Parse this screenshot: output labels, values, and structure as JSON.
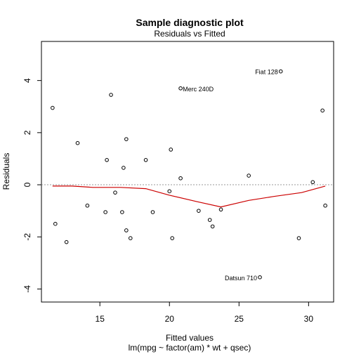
{
  "chart_data": {
    "type": "scatter",
    "title": "Sample diagnostic plot",
    "subtitle": "Residuals vs Fitted",
    "xlabel": "Fitted values",
    "xlabel2": "lm(mpg ~ factor(am) * wt + qsec)",
    "ylabel": "Residuals",
    "xlim": [
      10.8,
      31.8
    ],
    "ylim": [
      -4.5,
      5.5
    ],
    "xticks": [
      15,
      20,
      25,
      30
    ],
    "yticks": [
      -4,
      -2,
      0,
      2,
      4
    ],
    "reference_line": 0,
    "grid": false,
    "colors": {
      "points": "#000000",
      "smooth": "#cc0000",
      "reference": "#999999"
    },
    "points": [
      {
        "x": 11.6,
        "y": 2.95
      },
      {
        "x": 11.8,
        "y": -1.5
      },
      {
        "x": 12.6,
        "y": -2.2
      },
      {
        "x": 13.4,
        "y": 1.6
      },
      {
        "x": 14.1,
        "y": -0.8
      },
      {
        "x": 15.4,
        "y": -1.05
      },
      {
        "x": 15.5,
        "y": 0.95
      },
      {
        "x": 15.8,
        "y": 3.45
      },
      {
        "x": 16.1,
        "y": -0.3
      },
      {
        "x": 16.6,
        "y": -1.05
      },
      {
        "x": 16.7,
        "y": 0.65
      },
      {
        "x": 16.9,
        "y": -1.75
      },
      {
        "x": 16.9,
        "y": 1.75
      },
      {
        "x": 17.2,
        "y": -2.05
      },
      {
        "x": 18.3,
        "y": 0.95
      },
      {
        "x": 18.8,
        "y": -1.05
      },
      {
        "x": 20.0,
        "y": -0.25
      },
      {
        "x": 20.1,
        "y": 1.35
      },
      {
        "x": 20.2,
        "y": -2.05
      },
      {
        "x": 20.8,
        "y": 0.25
      },
      {
        "x": 20.8,
        "y": 3.7,
        "label": "Merc 240D"
      },
      {
        "x": 22.1,
        "y": -1.0
      },
      {
        "x": 22.9,
        "y": -1.35
      },
      {
        "x": 23.1,
        "y": -1.6
      },
      {
        "x": 23.7,
        "y": -0.95
      },
      {
        "x": 25.7,
        "y": 0.35
      },
      {
        "x": 26.5,
        "y": -3.55,
        "label": "Datsun 710"
      },
      {
        "x": 28.0,
        "y": 4.35,
        "label": "Fiat 128"
      },
      {
        "x": 29.3,
        "y": -2.05
      },
      {
        "x": 30.3,
        "y": 0.1
      },
      {
        "x": 31.0,
        "y": 2.85
      },
      {
        "x": 31.2,
        "y": -0.8
      }
    ],
    "smooth": [
      {
        "x": 11.6,
        "y": -0.05
      },
      {
        "x": 13.0,
        "y": -0.05
      },
      {
        "x": 14.5,
        "y": -0.1
      },
      {
        "x": 16.5,
        "y": -0.1
      },
      {
        "x": 18.3,
        "y": -0.15
      },
      {
        "x": 20.0,
        "y": -0.4
      },
      {
        "x": 22.0,
        "y": -0.65
      },
      {
        "x": 23.7,
        "y": -0.85
      },
      {
        "x": 25.7,
        "y": -0.6
      },
      {
        "x": 27.5,
        "y": -0.45
      },
      {
        "x": 29.5,
        "y": -0.3
      },
      {
        "x": 31.2,
        "y": -0.05
      }
    ]
  }
}
